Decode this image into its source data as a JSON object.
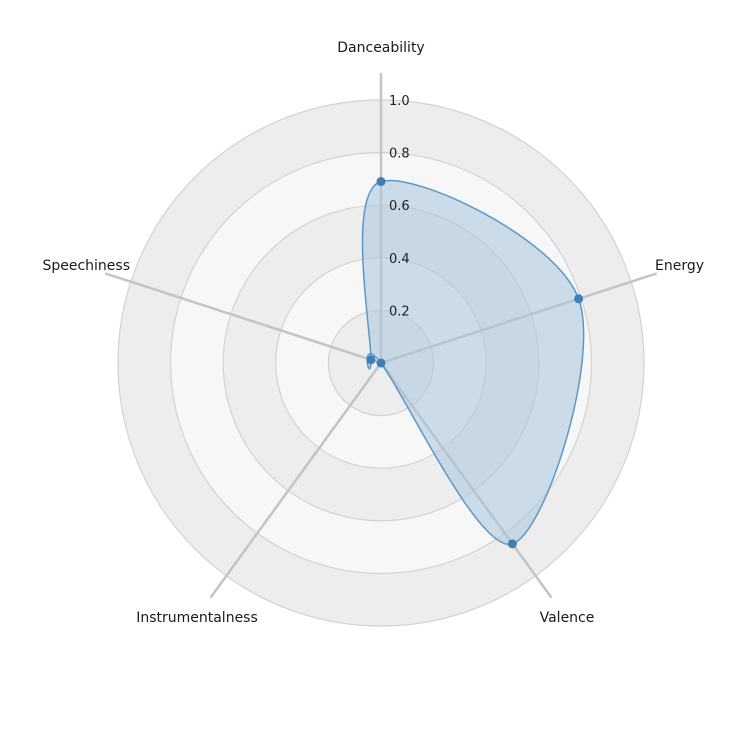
{
  "chart_data": {
    "type": "radar",
    "axes": [
      "Danceability",
      "Energy",
      "Valence",
      "Instrumentalness",
      "Speechiness"
    ],
    "values": [
      0.69,
      0.79,
      0.85,
      0.0,
      0.04
    ],
    "rlim": [
      0,
      1.0
    ],
    "ticks": [
      "0.2",
      "0.4",
      "0.6",
      "0.8",
      "1.0"
    ],
    "tick_values": [
      0.2,
      0.4,
      0.6,
      0.8,
      1.0
    ],
    "grid": true,
    "colors": {
      "fill": "#a8c4dc",
      "stroke": "#5b98c8",
      "marker": "#3f7fb6",
      "grid": "#d2d2d2",
      "spoke": "#c4c4c4",
      "band_light": "#f7f7f7",
      "band_dark": "#ededed"
    }
  }
}
